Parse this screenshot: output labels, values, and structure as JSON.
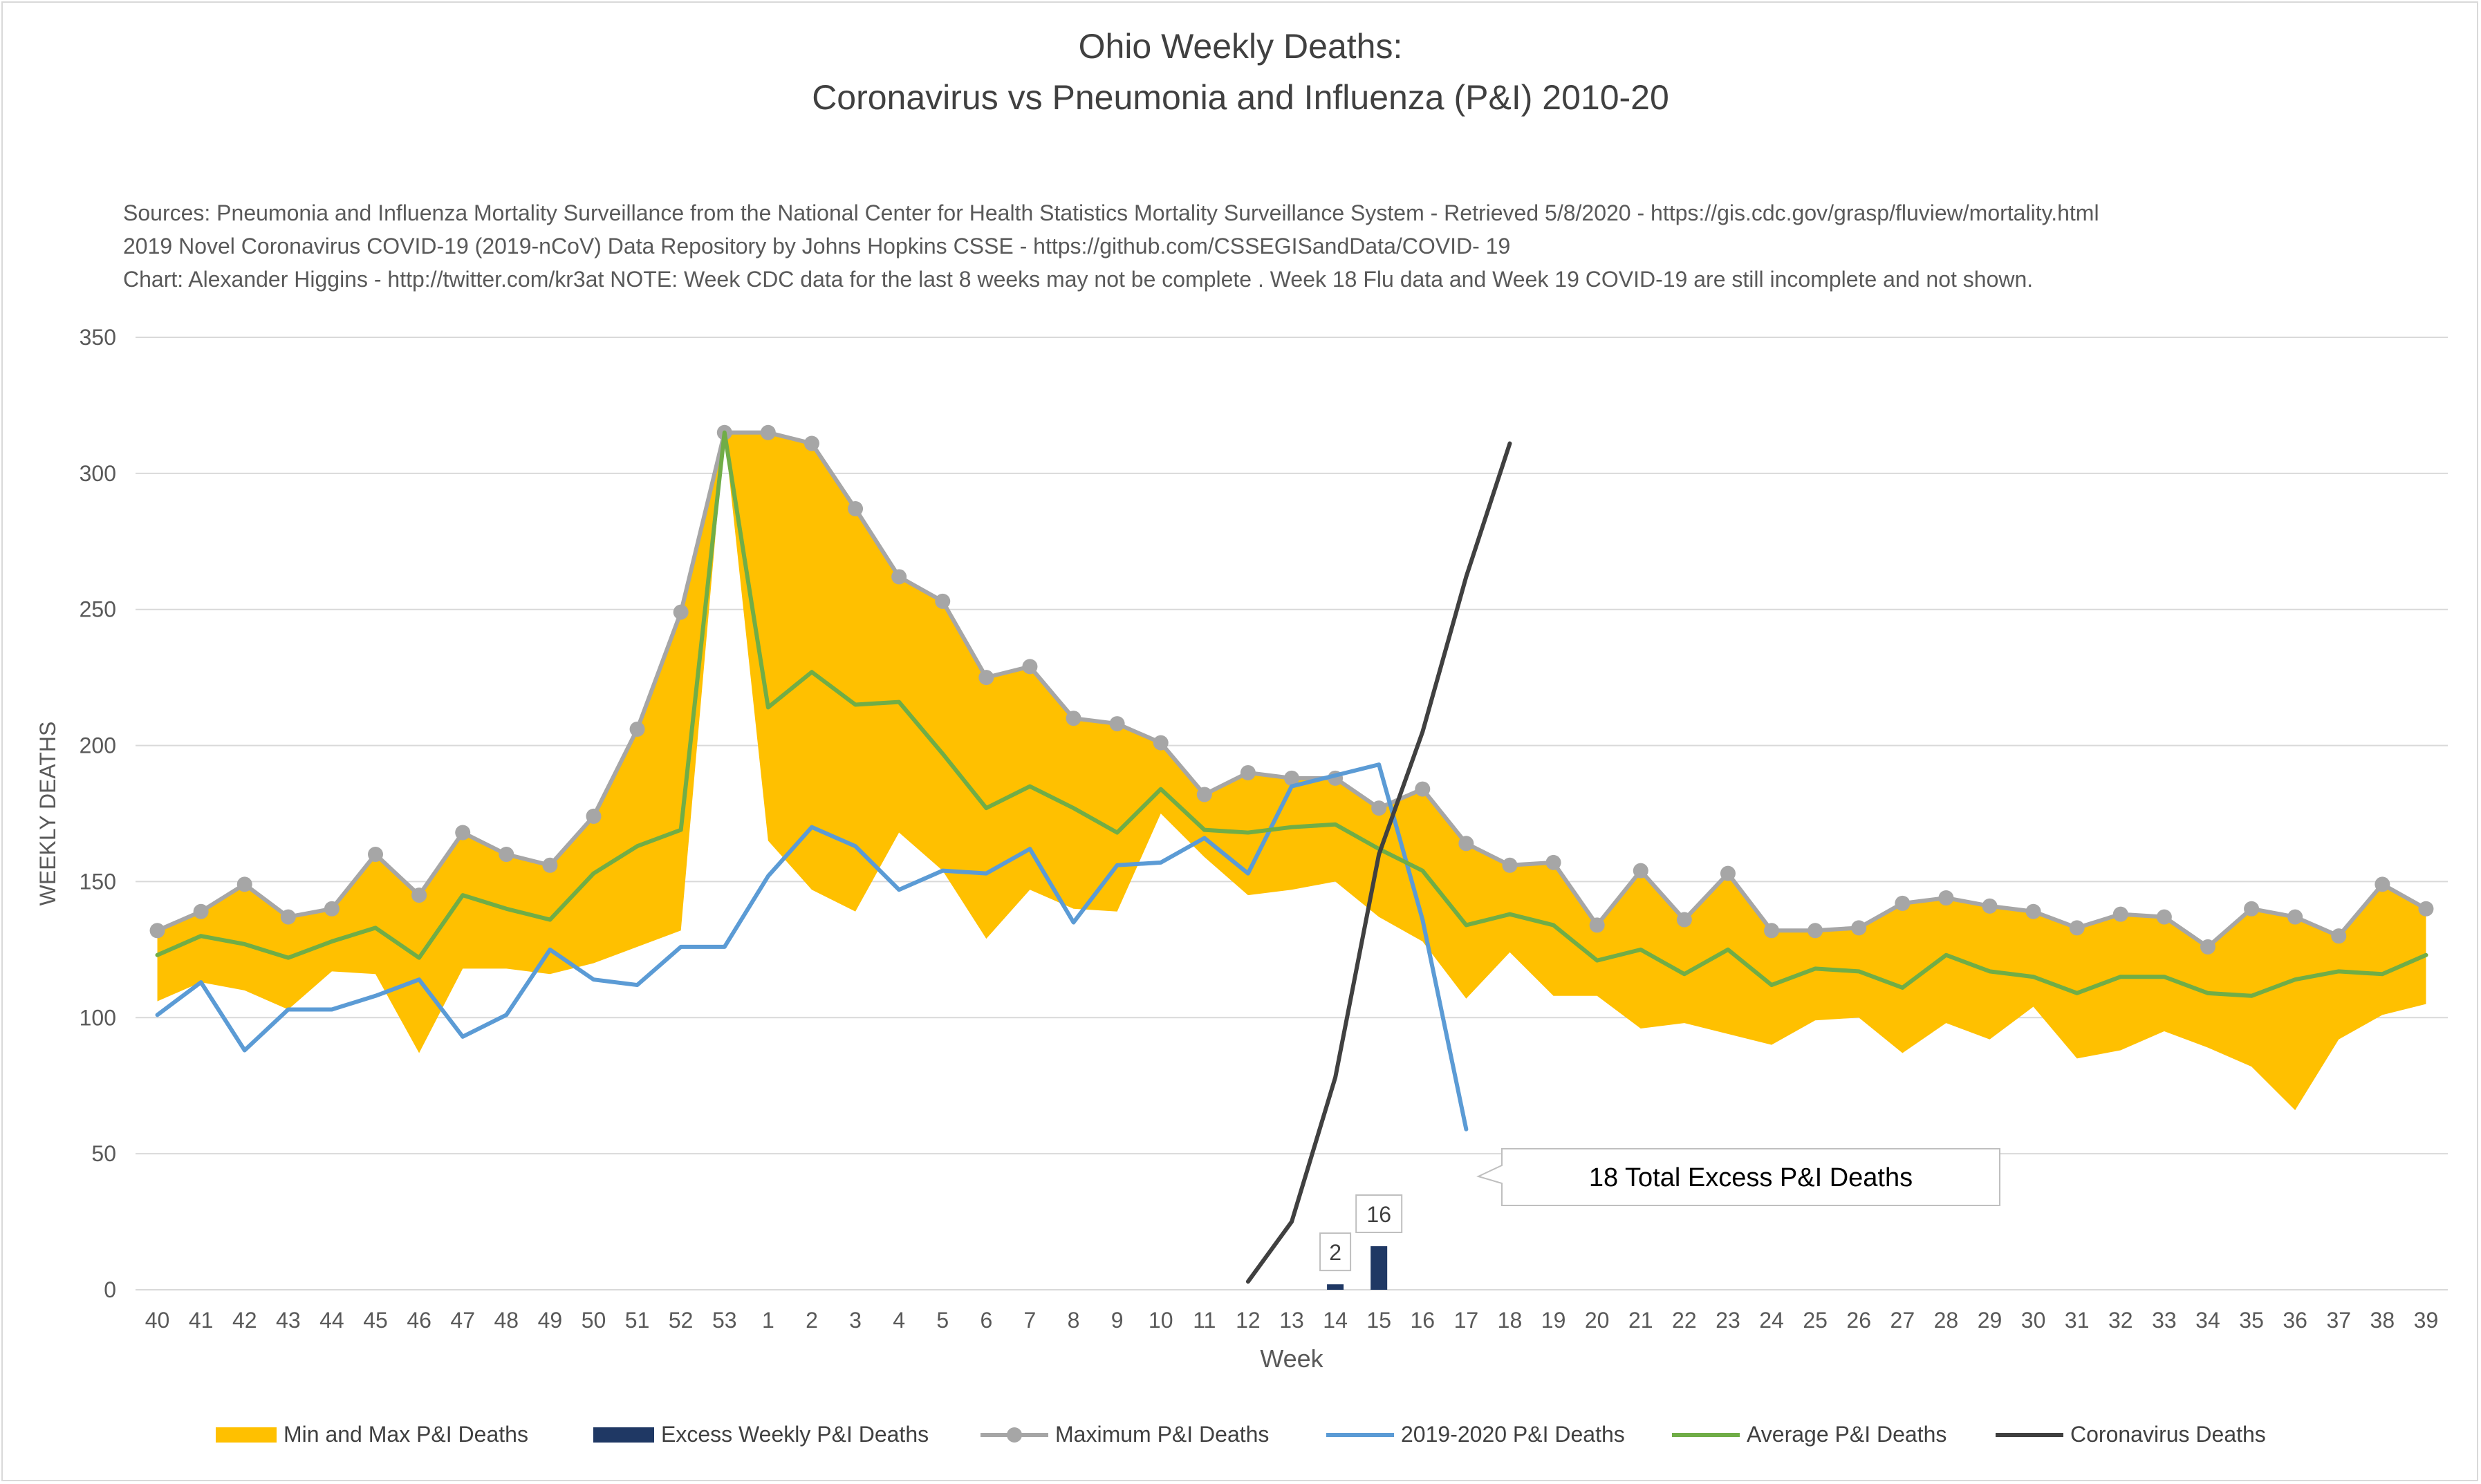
{
  "title_line1": "Ohio Weekly Deaths:",
  "title_line2": "Coronavirus vs Pneumonia and Influenza (P&I) 2010-20",
  "sources": [
    "Sources: Pneumonia and Influenza Mortality Surveillance from the National Center for Health Statistics Mortality Surveillance System - Retrieved 5/8/2020 - https://gis.cdc.gov/grasp/fluview/mortality.html",
    "2019 Novel Coronavirus COVID-19 (2019-nCoV) Data Repository by Johns Hopkins CSSE - https://github.com/CSSEGISandData/COVID- 19",
    "Chart: Alexander Higgins - http://twitter.com/kr3at   NOTE: Week CDC data for the last 8 weeks may not be complete . Week 18 Flu data and Week 19 COVID-19 are still incomplete and not shown."
  ],
  "callout": "18 Total Excess P&I Deaths",
  "colors": {
    "band": "#FFC000",
    "excess": "#1F3864",
    "maximum": "#A6A6A6",
    "current": "#5B9BD5",
    "average": "#70AD47",
    "coronavirus": "#404040",
    "grid": "#d9d9d9"
  },
  "chart_data": {
    "type": "line",
    "xlabel": "Week",
    "ylabel": "WEEKLY DEATHS",
    "ylim": [
      0,
      350
    ],
    "yticks": [
      0,
      50,
      100,
      150,
      200,
      250,
      300,
      350
    ],
    "grid": true,
    "legend_position": "bottom",
    "categories": [
      "40",
      "41",
      "42",
      "43",
      "44",
      "45",
      "46",
      "47",
      "48",
      "49",
      "50",
      "51",
      "52",
      "53",
      "1",
      "2",
      "3",
      "4",
      "5",
      "6",
      "7",
      "8",
      "9",
      "10",
      "11",
      "12",
      "13",
      "14",
      "15",
      "16",
      "17",
      "18",
      "19",
      "20",
      "21",
      "22",
      "23",
      "24",
      "25",
      "26",
      "27",
      "28",
      "29",
      "30",
      "31",
      "32",
      "33",
      "34",
      "35",
      "36",
      "37",
      "38",
      "39"
    ],
    "series": [
      {
        "name": "Min and Max P&I Deaths",
        "type": "area",
        "min": [
          106,
          113,
          110,
          103,
          117,
          116,
          87,
          118,
          118,
          116,
          120,
          126,
          132,
          315,
          165,
          147,
          139,
          168,
          154,
          129,
          147,
          140,
          139,
          175,
          159,
          145,
          147,
          150,
          137,
          128,
          107,
          124,
          108,
          108,
          96,
          98,
          94,
          90,
          99,
          100,
          87,
          98,
          92,
          104,
          85,
          88,
          95,
          89,
          82,
          66,
          92,
          101,
          105
        ],
        "max": [
          132,
          139,
          149,
          137,
          140,
          160,
          145,
          168,
          160,
          156,
          174,
          206,
          249,
          315,
          315,
          311,
          287,
          262,
          253,
          225,
          229,
          210,
          208,
          201,
          182,
          190,
          188,
          188,
          177,
          184,
          164,
          156,
          157,
          134,
          154,
          136,
          153,
          132,
          132,
          133,
          142,
          144,
          141,
          139,
          133,
          138,
          137,
          126,
          140,
          137,
          130,
          149,
          140
        ]
      },
      {
        "name": "Excess Weekly P&I Deaths",
        "type": "bar",
        "values": [
          null,
          null,
          null,
          null,
          null,
          null,
          null,
          null,
          null,
          null,
          null,
          null,
          null,
          null,
          null,
          null,
          null,
          null,
          null,
          null,
          null,
          null,
          null,
          null,
          null,
          null,
          null,
          2,
          16,
          null,
          null,
          null,
          null,
          null,
          null,
          null,
          null,
          null,
          null,
          null,
          null,
          null,
          null,
          null,
          null,
          null,
          null,
          null,
          null,
          null,
          null,
          null,
          null
        ],
        "labels": [
          "2",
          "16"
        ]
      },
      {
        "name": "Maximum P&I Deaths",
        "type": "line-marker",
        "values": [
          132,
          139,
          149,
          137,
          140,
          160,
          145,
          168,
          160,
          156,
          174,
          206,
          249,
          315,
          315,
          311,
          287,
          262,
          253,
          225,
          229,
          210,
          208,
          201,
          182,
          190,
          188,
          188,
          177,
          184,
          164,
          156,
          157,
          134,
          154,
          136,
          153,
          132,
          132,
          133,
          142,
          144,
          141,
          139,
          133,
          138,
          137,
          126,
          140,
          137,
          130,
          149,
          140
        ]
      },
      {
        "name": "2019-2020 P&I Deaths",
        "type": "line",
        "values": [
          101,
          113,
          88,
          103,
          103,
          108,
          114,
          93,
          101,
          125,
          114,
          112,
          126,
          126,
          152,
          170,
          163,
          147,
          154,
          153,
          162,
          135,
          156,
          157,
          166,
          153,
          185,
          189,
          193,
          136,
          59,
          null,
          null,
          null,
          null,
          null,
          null,
          null,
          null,
          null,
          null,
          null,
          null,
          null,
          null,
          null,
          null,
          null,
          null,
          null,
          null,
          null,
          null
        ]
      },
      {
        "name": "Average P&I Deaths",
        "type": "line",
        "values": [
          123,
          130,
          127,
          122,
          128,
          133,
          122,
          145,
          140,
          136,
          153,
          163,
          169,
          315,
          214,
          227,
          215,
          216,
          197,
          177,
          185,
          177,
          168,
          184,
          169,
          168,
          170,
          171,
          162,
          154,
          134,
          138,
          134,
          121,
          125,
          116,
          125,
          112,
          118,
          117,
          111,
          123,
          117,
          115,
          109,
          115,
          115,
          109,
          108,
          114,
          117,
          116,
          123
        ]
      },
      {
        "name": "Coronavirus Deaths",
        "type": "line",
        "values": [
          null,
          null,
          null,
          null,
          null,
          null,
          null,
          null,
          null,
          null,
          null,
          null,
          null,
          null,
          null,
          null,
          null,
          null,
          null,
          null,
          null,
          null,
          null,
          null,
          null,
          3,
          25,
          78,
          160,
          205,
          262,
          311,
          null,
          null,
          null,
          null,
          null,
          null,
          null,
          null,
          null,
          null,
          null,
          null,
          null,
          null,
          null,
          null,
          null,
          null,
          null,
          null,
          null
        ]
      }
    ]
  }
}
